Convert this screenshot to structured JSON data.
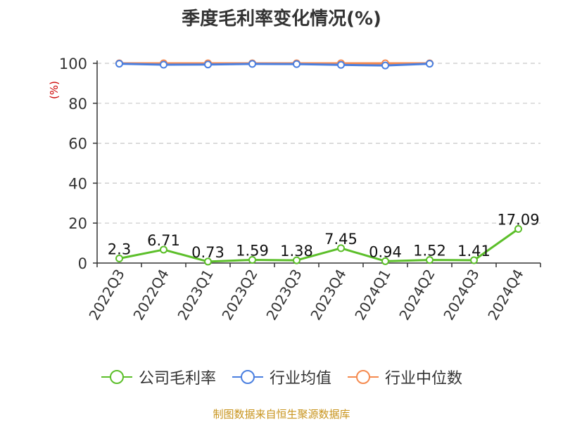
{
  "chart_data": {
    "type": "line",
    "title": "季度毛利率变化情况(%)",
    "ylabel": "(%)",
    "categories": [
      "2022Q3",
      "2022Q4",
      "2023Q1",
      "2023Q2",
      "2023Q3",
      "2023Q4",
      "2024Q1",
      "2024Q2",
      "2024Q3",
      "2024Q4"
    ],
    "ylim": [
      0,
      100
    ],
    "yticks": [
      0,
      20,
      40,
      60,
      80,
      100
    ],
    "grid": true,
    "legend_position": "bottom",
    "series": [
      {
        "name": "公司毛利率",
        "color": "#5cbf2a",
        "values": [
          2.3,
          6.71,
          0.73,
          1.59,
          1.38,
          7.45,
          0.94,
          1.52,
          1.41,
          17.09
        ],
        "labels": [
          "2.3",
          "6.71",
          "0.73",
          "1.59",
          "1.38",
          "7.45",
          "0.94",
          "1.52",
          "1.41",
          "17.09"
        ]
      },
      {
        "name": "行业均值",
        "color": "#4a7fe0",
        "values": [
          99.8,
          99.3,
          99.4,
          99.7,
          99.6,
          99.2,
          98.9,
          99.8,
          null,
          null
        ]
      },
      {
        "name": "行业中位数",
        "color": "#f58a4f",
        "values": [
          100,
          100,
          100,
          100,
          100,
          100,
          100,
          100,
          null,
          null
        ]
      }
    ]
  },
  "source_note": "制图数据来自恒生聚源数据库"
}
